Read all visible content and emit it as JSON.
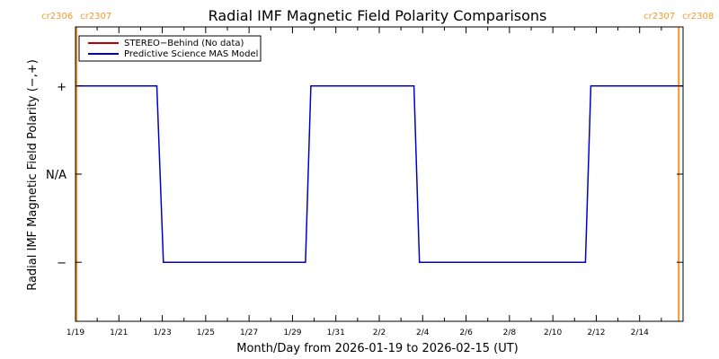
{
  "chart_data": {
    "type": "line",
    "title": "Radial IMF Magnetic Field Polarity Comparisons",
    "xlabel": "Month/Day from 2026-01-19 to 2026-02-15 (UT)",
    "ylabel": "Radial IMF Magnetic Field Polarity (−,+)",
    "xlim": [
      0,
      28
    ],
    "ylim": [
      -1.67,
      1.67
    ],
    "x_ticks": [
      {
        "x": 0,
        "label": "1/19"
      },
      {
        "x": 2,
        "label": "1/21"
      },
      {
        "x": 4,
        "label": "1/23"
      },
      {
        "x": 6,
        "label": "1/25"
      },
      {
        "x": 8,
        "label": "1/27"
      },
      {
        "x": 10,
        "label": "1/29"
      },
      {
        "x": 12,
        "label": "1/31"
      },
      {
        "x": 14,
        "label": "2/2"
      },
      {
        "x": 16,
        "label": "2/4"
      },
      {
        "x": 18,
        "label": "2/6"
      },
      {
        "x": 20,
        "label": "2/8"
      },
      {
        "x": 22,
        "label": "2/10"
      },
      {
        "x": 24,
        "label": "2/12"
      },
      {
        "x": 26,
        "label": "2/14"
      }
    ],
    "y_ticks": [
      {
        "y": 1,
        "label": "+"
      },
      {
        "y": 0,
        "label": "N/A"
      },
      {
        "y": -1,
        "label": "−"
      }
    ],
    "grid": false,
    "legend_position": "top-left",
    "series": [
      {
        "name": "STEREO−Behind (No data)",
        "color": "#c00000",
        "x": [],
        "y": []
      },
      {
        "name": "Predictive Science MAS Model",
        "color": "#0000cc",
        "x": [
          0.0,
          3.75,
          4.05,
          10.6,
          10.85,
          15.6,
          15.85,
          23.5,
          23.75,
          28.0
        ],
        "y": [
          1,
          1,
          -1,
          -1,
          1,
          1,
          -1,
          -1,
          1,
          1
        ]
      }
    ],
    "carrington_markers": [
      {
        "x": 0.05,
        "left_label": "cr2306",
        "right_label": "cr2307",
        "color": "#f29a2e"
      },
      {
        "x": 27.8,
        "left_label": "cr2307",
        "right_label": "cr2308",
        "color": "#f29a2e"
      }
    ]
  }
}
